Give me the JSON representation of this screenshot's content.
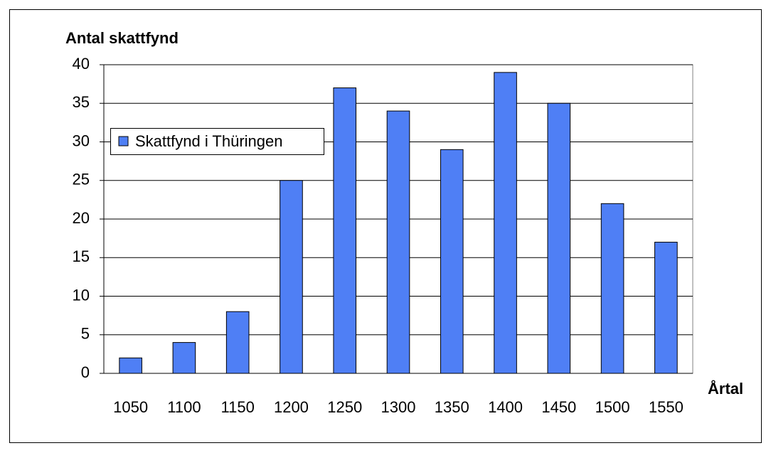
{
  "chart_data": {
    "type": "bar",
    "y_label": "Antal skattfynd",
    "x_label": "Årtal",
    "categories": [
      "1050",
      "1100",
      "1150",
      "1200",
      "1250",
      "1300",
      "1350",
      "1400",
      "1450",
      "1500",
      "1550"
    ],
    "series": [
      {
        "name": "Skattfynd i Thüringen",
        "color": "#4f7ff5",
        "values": [
          2,
          4,
          8,
          25,
          37,
          34,
          29,
          39,
          35,
          22,
          17
        ]
      }
    ],
    "ylim": [
      0,
      40
    ],
    "yticks": [
      0,
      5,
      10,
      15,
      20,
      25,
      30,
      35,
      40
    ],
    "grid": true,
    "legend": "left"
  }
}
